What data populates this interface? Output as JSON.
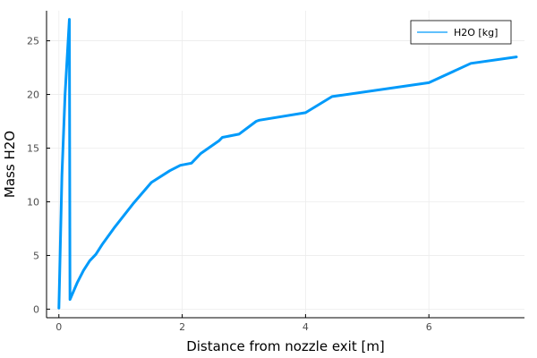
{
  "chart_data": {
    "type": "line",
    "title": "",
    "xlabel": "Distance from nozzle exit [m]",
    "ylabel": "Mass H2O",
    "xlim": [
      -0.2,
      7.55
    ],
    "ylim": [
      -0.8,
      27.8
    ],
    "xticks": [
      0,
      2,
      4,
      6
    ],
    "yticks": [
      0,
      5,
      10,
      15,
      20,
      25
    ],
    "grid": true,
    "legend_position": "top-right",
    "colors": {
      "series": "#009AFA",
      "axis": "#000000",
      "grid": "#ececec"
    },
    "series": [
      {
        "name": "H2O [kg]",
        "x": [
          0.0,
          0.05,
          0.1,
          0.17,
          0.18,
          0.3,
          0.4,
          0.5,
          0.6,
          0.7,
          0.9,
          1.2,
          1.5,
          1.8,
          1.97,
          2.15,
          2.3,
          2.6,
          2.65,
          2.92,
          3.2,
          3.25,
          4.0,
          4.43,
          6.0,
          6.68,
          7.42
        ],
        "y": [
          0.1,
          12.5,
          20.0,
          27.0,
          0.9,
          2.5,
          3.6,
          4.5,
          5.1,
          6.0,
          7.6,
          9.8,
          11.8,
          12.9,
          13.4,
          13.6,
          14.5,
          15.7,
          16.0,
          16.3,
          17.5,
          17.6,
          18.3,
          19.8,
          21.1,
          22.9,
          23.5
        ]
      }
    ]
  }
}
